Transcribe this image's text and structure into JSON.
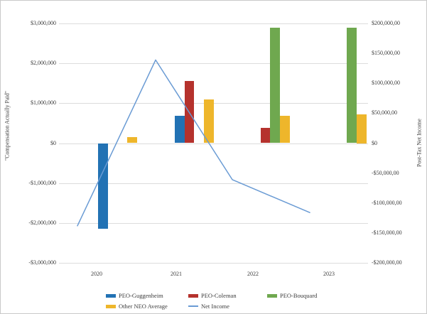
{
  "chart": {
    "left_axis": {
      "title": "\"Compensation Actually Paid\"",
      "ticks": [
        "$3,000,000",
        "$2,000,000",
        "$1,000,000",
        "$0",
        "-$1,000,000",
        "-$2,000,000",
        "-$3,000,000"
      ]
    },
    "right_axis": {
      "title": "Post-Tax Net Income",
      "ticks": [
        "$200,000,00",
        "$150,000,00",
        "$100,000,00",
        "$50,000,00",
        "$0",
        "-$50,000,00",
        "-$100,000,00",
        "-$150,000,00",
        "-$200,000,00"
      ]
    },
    "x_axis": {
      "categories": [
        "2020",
        "2021",
        "2022",
        "2023"
      ]
    },
    "legend": {
      "items": [
        {
          "label": "PEO-Guggenheim",
          "color": "#2272B4",
          "kind": "bar"
        },
        {
          "label": "PEO-Coleman",
          "color": "#B5322D",
          "kind": "bar"
        },
        {
          "label": "PEO-Bouquard",
          "color": "#6FA84F",
          "kind": "bar"
        },
        {
          "label": "Other NEO Average",
          "color": "#EEB62B",
          "kind": "bar"
        },
        {
          "label": "Net Income",
          "color": "#6A9BD4",
          "kind": "line"
        }
      ]
    },
    "colors": {
      "gridline": "#dcdcdc",
      "border": "#c9c9c9",
      "text": "#3b3b3b"
    }
  },
  "chart_data": {
    "type": "bar",
    "subtype": "grouped-bars-with-line-overlay",
    "categories": [
      "2020",
      "2021",
      "2022",
      "2023"
    ],
    "series": [
      {
        "name": "PEO-Guggenheim",
        "type": "bar",
        "axis": "left",
        "color": "#2272B4",
        "values": [
          -2150000,
          680000,
          0,
          0
        ]
      },
      {
        "name": "PEO-Coleman",
        "type": "bar",
        "axis": "left",
        "color": "#B5322D",
        "values": [
          0,
          1550000,
          380000,
          0
        ]
      },
      {
        "name": "PEO-Bouquard",
        "type": "bar",
        "axis": "left",
        "color": "#6FA84F",
        "values": [
          0,
          0,
          2900000,
          2900000
        ]
      },
      {
        "name": "Other NEO Average",
        "type": "bar",
        "axis": "left",
        "color": "#EEB62B",
        "values": [
          150000,
          1100000,
          690000,
          730000
        ]
      },
      {
        "name": "Net Income",
        "type": "line",
        "axis": "right",
        "color": "#6A9BD4",
        "values": [
          -138000,
          139000,
          -61000,
          -116000
        ]
      }
    ],
    "title": "",
    "xlabel": "",
    "ylabel_left": "\"Compensation Actually Paid\"",
    "ylabel_right": "Post-Tax Net Income",
    "left_ylim": [
      -3000000,
      3000000
    ],
    "right_ylim": [
      -200000,
      200000
    ],
    "left_tick_step": 1000000,
    "right_tick_step": 50000,
    "grid": true,
    "legend_position": "bottom"
  }
}
